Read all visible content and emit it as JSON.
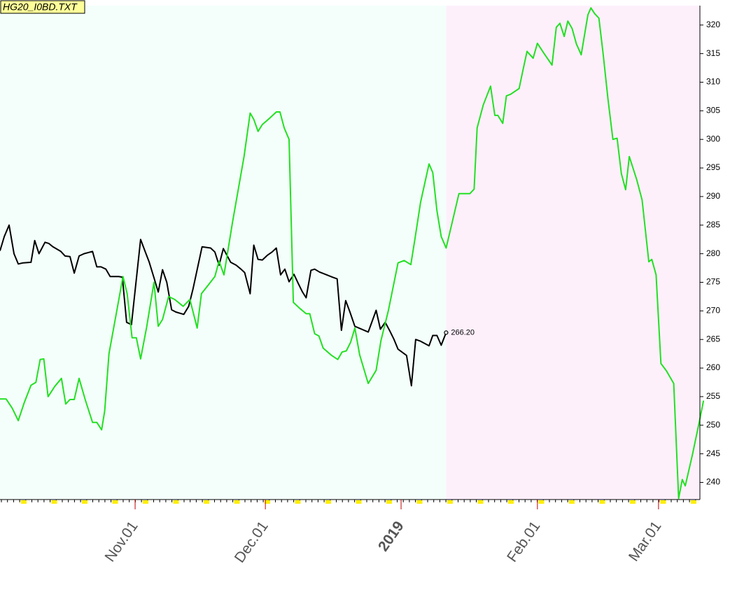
{
  "chart_data": {
    "type": "line",
    "title": "HG20_I0BD.TXT",
    "xlim": [
      0,
      115
    ],
    "ylim": [
      237,
      323.4
    ],
    "yticks": [
      240,
      245,
      250,
      255,
      260,
      265,
      270,
      275,
      280,
      285,
      290,
      295,
      300,
      305,
      310,
      315,
      320
    ],
    "xticks": [
      {
        "value": 22.2,
        "label": "Nov.01",
        "color": "#555555"
      },
      {
        "value": 43.6,
        "label": "Dec.01",
        "color": "#555555"
      },
      {
        "value": 65.9,
        "label": "2019",
        "color": "#7a0a0a"
      },
      {
        "value": 88.3,
        "label": "Feb.01",
        "color": "#555555"
      },
      {
        "value": 108.2,
        "label": "Mar.01",
        "color": "#555555"
      }
    ],
    "shaded_regions": [
      {
        "x": [
          0,
          73.3
        ],
        "color": "#f4fffb"
      },
      {
        "x": [
          73.3,
          115
        ],
        "color": "#fdf0fb"
      }
    ],
    "series": [
      {
        "color": "#000000",
        "x": [
          0,
          0.7,
          1.5,
          2.3,
          3.0,
          3.8,
          5.1,
          5.7,
          6.4,
          7.4,
          8.0,
          8.7,
          10.0,
          10.7,
          11.5,
          12.2,
          13.0,
          13.8,
          15.2,
          15.9,
          16.6,
          17.4,
          18.1,
          19.5,
          20.1,
          20.8,
          21.6,
          23.1,
          23.8,
          24.5,
          25.3,
          26.0,
          26.7,
          27.4,
          28.2,
          28.9,
          30.2,
          31.0,
          31.7,
          33.2,
          34.6,
          35.3,
          36.0,
          36.7,
          37.4,
          37.9,
          38.8,
          39.6,
          40.2,
          41.1,
          41.7,
          42.4,
          43.1,
          43.9,
          44.7,
          45.4,
          46.1,
          46.8,
          47.5,
          48.3,
          49.0,
          49.7,
          50.3,
          51.1,
          51.7,
          52.5,
          53.2,
          54.6,
          55.4,
          56.1,
          56.8,
          57.5,
          58.3,
          60.5,
          61.8,
          62.5,
          63.3,
          64.0,
          64.7,
          65.4,
          66.8,
          67.6,
          68.3,
          69.1,
          70.5,
          71.1,
          71.8,
          72.5,
          73.3
        ],
        "values": [
          280.5,
          283,
          285,
          280,
          278.2,
          278.4,
          278.5,
          282.3,
          280,
          282,
          281.8,
          281.2,
          280.4,
          279.6,
          279.5,
          276.6,
          279.6,
          280,
          280.4,
          277.7,
          277.7,
          277.3,
          276,
          276,
          275.9,
          268,
          267.6,
          282.5,
          280.5,
          278.6,
          275.8,
          273.3,
          277.2,
          275,
          270.2,
          269.8,
          269.4,
          270.8,
          273.8,
          281.2,
          281,
          280.3,
          278,
          280.9,
          279.5,
          278.5,
          278,
          277.3,
          276.7,
          273,
          281.5,
          279,
          278.9,
          279.7,
          280.3,
          281,
          276.3,
          277.3,
          275.1,
          276.4,
          274.8,
          273.3,
          272.3,
          277.1,
          277.3,
          276.8,
          276.5,
          275.9,
          275.6,
          266.6,
          271.8,
          269.8,
          267.3,
          266.3,
          270.1,
          266.8,
          268,
          266.6,
          265.1,
          263.3,
          262.2,
          256.9,
          265,
          264.7,
          263.9,
          265.7,
          265.7,
          264,
          266.2
        ],
        "last_label": "266.20"
      },
      {
        "color": "#22e022",
        "x": [
          0,
          1.0,
          2.0,
          3.0,
          4.0,
          5.1,
          5.9,
          6.6,
          7.2,
          7.9,
          9.0,
          10.1,
          10.8,
          11.5,
          12.2,
          13.0,
          14.0,
          15.2,
          15.9,
          16.7,
          17.2,
          17.9,
          19.1,
          20.2,
          20.9,
          21.7,
          22.4,
          23.1,
          24.1,
          25.3,
          26.0,
          26.7,
          27.7,
          28.7,
          30.1,
          31.2,
          32.4,
          33.1,
          34.2,
          35.3,
          36.0,
          36.8,
          38.2,
          40.1,
          41.1,
          41.7,
          42.4,
          43.1,
          44.3,
          45.4,
          46.0,
          46.7,
          47.5,
          48.2,
          49.2,
          50.3,
          50.9,
          51.7,
          52.4,
          53.1,
          54.5,
          55.5,
          56.2,
          56.9,
          57.6,
          58.3,
          59.1,
          60.5,
          61.8,
          62.6,
          63.8,
          65.4,
          66.4,
          67.5,
          68.2,
          69.1,
          70.5,
          71.1,
          71.8,
          72.5,
          73.3,
          74.3,
          75.4,
          76.2,
          77.2,
          77.9,
          78.4,
          79.4,
          80.6,
          81.3,
          81.8,
          82.6,
          83.2,
          83.9,
          85.3,
          85.9,
          86.6,
          87.6,
          88.3,
          89.4,
          90.7,
          91.4,
          92.0,
          92.7,
          93.3,
          94.0,
          94.7,
          95.5,
          96.6,
          97.1,
          97.7,
          98.4,
          99.1,
          99.9,
          100.7,
          101.4,
          102.1,
          102.8,
          103.4,
          104.6,
          105.5,
          106.6,
          107.1,
          107.8,
          108.6,
          109.5,
          110.7,
          111.5,
          112.1,
          112.6,
          113.8,
          114.9,
          115.6
        ],
        "values": [
          254.6,
          254.6,
          253,
          250.8,
          254,
          257,
          257.5,
          261.5,
          261.6,
          255,
          256.8,
          258.2,
          253.7,
          254.5,
          254.5,
          258.2,
          254.5,
          250.5,
          250.5,
          249.2,
          252.5,
          262.5,
          269.5,
          276,
          273,
          265.3,
          265.3,
          261.6,
          267.2,
          275,
          267.3,
          268.5,
          272.5,
          272,
          270.8,
          272,
          267,
          273,
          274.5,
          276,
          278.7,
          276.3,
          285.5,
          297,
          304.6,
          303.5,
          301.4,
          302.6,
          303.7,
          304.8,
          304.8,
          302,
          300,
          271.5,
          270.5,
          269.5,
          269.5,
          266,
          265.6,
          263.5,
          262.2,
          261.5,
          262.8,
          263,
          264.5,
          267,
          262.3,
          257.3,
          259.6,
          264.8,
          270,
          278.4,
          278.8,
          278.1,
          282.7,
          289,
          295.7,
          294.2,
          287.5,
          283,
          281,
          285.5,
          290.5,
          290.5,
          290.5,
          291.3,
          302,
          306,
          309.3,
          304.2,
          304.2,
          302.8,
          307.6,
          307.9,
          308.9,
          312,
          315.4,
          314.2,
          316.8,
          315,
          313,
          319.6,
          320.3,
          318,
          320.7,
          319.4,
          316.7,
          314.8,
          321.8,
          323,
          322,
          321.2,
          315,
          307,
          300,
          300.2,
          294,
          291.2,
          297,
          293,
          289.4,
          278.6,
          279,
          276.3,
          260.8,
          259.5,
          257.3,
          237.2,
          240.5,
          239.4,
          245,
          250.6,
          254.3
        ]
      }
    ]
  }
}
